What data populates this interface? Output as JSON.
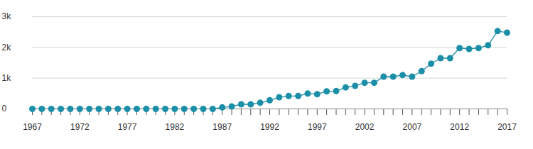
{
  "chart_data": {
    "type": "line",
    "x": [
      1967,
      1968,
      1969,
      1970,
      1971,
      1972,
      1973,
      1974,
      1975,
      1976,
      1977,
      1978,
      1979,
      1980,
      1981,
      1982,
      1983,
      1984,
      1985,
      1986,
      1987,
      1988,
      1989,
      1990,
      1991,
      1992,
      1993,
      1994,
      1995,
      1996,
      1997,
      1998,
      1999,
      2000,
      2001,
      2002,
      2003,
      2004,
      2005,
      2006,
      2007,
      2008,
      2009,
      2010,
      2011,
      2012,
      2013,
      2014,
      2015,
      2016,
      2017
    ],
    "values": [
      0,
      0,
      0,
      0,
      0,
      0,
      0,
      0,
      0,
      0,
      0,
      0,
      0,
      0,
      0,
      0,
      0,
      0,
      0,
      0,
      50,
      80,
      150,
      150,
      200,
      280,
      380,
      420,
      420,
      500,
      480,
      570,
      580,
      700,
      750,
      850,
      850,
      1050,
      1050,
      1100,
      1050,
      1230,
      1470,
      1650,
      1650,
      1980,
      1950,
      1980,
      2070,
      2530,
      2480
    ],
    "color": "#1c8fa8",
    "marker": "circle",
    "xlim": [
      1967,
      2017
    ],
    "xticks": [
      1967,
      1972,
      1977,
      1982,
      1987,
      1992,
      1997,
      2002,
      2007,
      2012,
      2017
    ],
    "ylim": [
      0,
      3000
    ],
    "yticks": [
      0,
      {
        "value": 1000,
        "label": "1k"
      },
      {
        "value": 2000,
        "label": "2k"
      },
      {
        "value": 3000,
        "label": "3k"
      }
    ],
    "grid": true
  }
}
